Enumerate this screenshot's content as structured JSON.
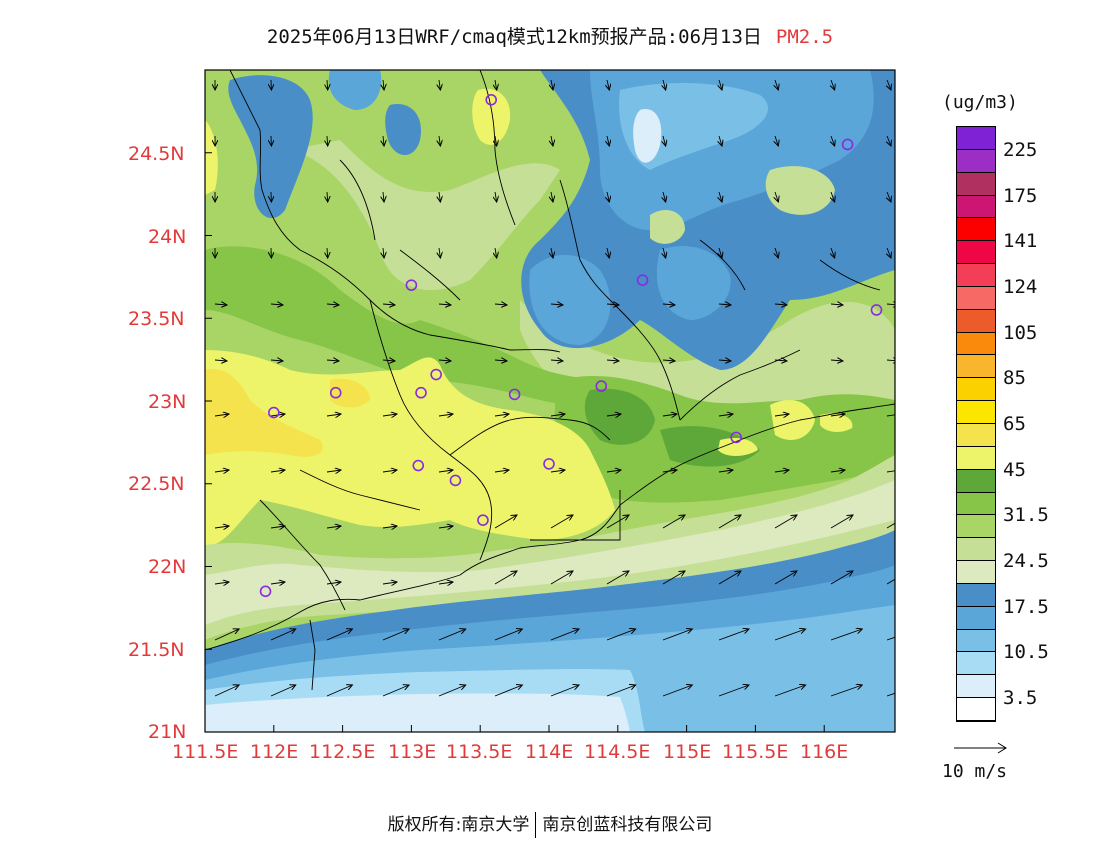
{
  "title": {
    "main": "2025年06月13日WRF/cmaq模式12km预报产品:06月13日",
    "pollutant": "PM2.5"
  },
  "colorbar": {
    "units": "(ug/m3)",
    "colors": [
      "#ffffff",
      "#dbeef9",
      "#a8dcf5",
      "#79bfe6",
      "#5aa6d9",
      "#4a8ec8",
      "#dde9bf",
      "#c6df97",
      "#a9d466",
      "#86c548",
      "#5ea83a",
      "#eef46a",
      "#f5e34d",
      "#fce600",
      "#fbd100",
      "#f9b62d",
      "#f98a0c",
      "#ee5b2b",
      "#f76964",
      "#f43e57",
      "#ef0745",
      "#fc0000",
      "#cd1674",
      "#b03060",
      "#9d2ec5",
      "#7f22d5"
    ],
    "labels": [
      "3.5",
      "10.5",
      "17.5",
      "24.5",
      "31.5",
      "45",
      "65",
      "85",
      "105",
      "124",
      "141",
      "175",
      "225"
    ]
  },
  "wind_reference": {
    "label": "10  m/s"
  },
  "lat_labels": [
    "24.5N",
    "24N",
    "23.5N",
    "23N",
    "22.5N",
    "22N",
    "21.5N",
    "21N"
  ],
  "lon_labels": [
    "111.5E",
    "112E",
    "112.5E",
    "113E",
    "113.5E",
    "114E",
    "114.5E",
    "115E",
    "115.5E",
    "116E"
  ],
  "footer": {
    "left": "版权所有:南京大学",
    "right": "南京创蓝科技有限公司"
  },
  "stations": [
    {
      "lon": 113.58,
      "lat": 24.82
    },
    {
      "lon": 116.17,
      "lat": 24.55
    },
    {
      "lon": 113.0,
      "lat": 23.7
    },
    {
      "lon": 114.68,
      "lat": 23.73
    },
    {
      "lon": 116.38,
      "lat": 23.55
    },
    {
      "lon": 112.45,
      "lat": 23.05
    },
    {
      "lon": 113.07,
      "lat": 23.05
    },
    {
      "lon": 113.18,
      "lat": 23.16
    },
    {
      "lon": 113.75,
      "lat": 23.04
    },
    {
      "lon": 114.38,
      "lat": 23.09
    },
    {
      "lon": 112.0,
      "lat": 22.93
    },
    {
      "lon": 113.05,
      "lat": 22.61
    },
    {
      "lon": 113.32,
      "lat": 22.52
    },
    {
      "lon": 114.0,
      "lat": 22.62
    },
    {
      "lon": 115.36,
      "lat": 22.78
    },
    {
      "lon": 113.52,
      "lat": 22.28
    },
    {
      "lon": 111.94,
      "lat": 21.85
    }
  ],
  "map_colors": {
    "coast": "#000000",
    "station": "#8a2be2"
  }
}
